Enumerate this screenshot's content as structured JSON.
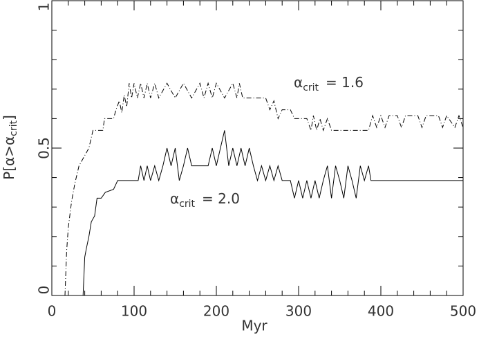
{
  "chart_data": {
    "type": "line",
    "xlabel": "Myr",
    "ylabel": {
      "main": "P[α>α",
      "sub": "crit",
      "end": "]"
    },
    "xlim": [
      0,
      500
    ],
    "ylim": [
      0,
      1
    ],
    "xticks": [
      0,
      100,
      200,
      300,
      400,
      500
    ],
    "yticks": [
      0,
      0.5,
      1
    ],
    "xminorticks": [
      20,
      40,
      60,
      80,
      120,
      140,
      160,
      180,
      220,
      240,
      260,
      280,
      320,
      340,
      360,
      380,
      420,
      440,
      460,
      480
    ],
    "yminorticks": [
      0.1,
      0.2,
      0.3,
      0.4,
      0.6,
      0.7,
      0.8,
      0.9
    ],
    "series": [
      {
        "name": {
          "symbol": "α",
          "sub": "crit",
          "text": "= 1.6"
        },
        "color": "#000000",
        "dash": "dashdot",
        "x": [
          16,
          18,
          20,
          24,
          28,
          33,
          45,
          50,
          62,
          64,
          75,
          78,
          82,
          85,
          88,
          91,
          94,
          97,
          100,
          104,
          108,
          112,
          116,
          120,
          125,
          130,
          140,
          150,
          160,
          170,
          180,
          185,
          190,
          195,
          200,
          210,
          220,
          225,
          228,
          232,
          260,
          265,
          270,
          275,
          280,
          290,
          295,
          310,
          315,
          318,
          322,
          326,
          330,
          335,
          340,
          385,
          390,
          395,
          400,
          405,
          410,
          420,
          425,
          430,
          445,
          450,
          455,
          470,
          475,
          480,
          490,
          495,
          500
        ],
        "values": [
          0,
          0.15,
          0.23,
          0.32,
          0.38,
          0.44,
          0.5,
          0.56,
          0.56,
          0.6,
          0.6,
          0.63,
          0.66,
          0.62,
          0.68,
          0.64,
          0.72,
          0.67,
          0.72,
          0.67,
          0.72,
          0.67,
          0.72,
          0.67,
          0.72,
          0.67,
          0.72,
          0.67,
          0.72,
          0.67,
          0.72,
          0.67,
          0.72,
          0.67,
          0.72,
          0.67,
          0.72,
          0.67,
          0.72,
          0.67,
          0.67,
          0.63,
          0.66,
          0.6,
          0.63,
          0.63,
          0.6,
          0.6,
          0.56,
          0.61,
          0.56,
          0.6,
          0.56,
          0.6,
          0.56,
          0.56,
          0.61,
          0.57,
          0.61,
          0.57,
          0.61,
          0.61,
          0.57,
          0.61,
          0.61,
          0.57,
          0.61,
          0.61,
          0.57,
          0.61,
          0.57,
          0.61,
          0.57
        ]
      },
      {
        "name": {
          "symbol": "α",
          "sub": "crit",
          "text": "= 2.0"
        },
        "color": "#000000",
        "dash": "solid",
        "x": [
          38,
          40,
          42,
          45,
          48,
          52,
          55,
          60,
          65,
          75,
          80,
          105,
          108,
          112,
          116,
          120,
          125,
          130,
          135,
          140,
          145,
          150,
          155,
          160,
          165,
          170,
          190,
          195,
          200,
          205,
          210,
          215,
          220,
          225,
          230,
          235,
          240,
          245,
          250,
          255,
          260,
          265,
          270,
          275,
          280,
          290,
          295,
          300,
          305,
          310,
          315,
          320,
          325,
          330,
          335,
          340,
          345,
          350,
          355,
          360,
          365,
          370,
          375,
          380,
          385,
          388,
          500
        ],
        "values": [
          0,
          0.13,
          0.16,
          0.2,
          0.25,
          0.27,
          0.33,
          0.33,
          0.35,
          0.36,
          0.39,
          0.39,
          0.44,
          0.39,
          0.44,
          0.39,
          0.44,
          0.39,
          0.44,
          0.5,
          0.44,
          0.5,
          0.39,
          0.44,
          0.5,
          0.44,
          0.44,
          0.5,
          0.44,
          0.5,
          0.56,
          0.44,
          0.5,
          0.44,
          0.5,
          0.44,
          0.5,
          0.44,
          0.39,
          0.44,
          0.39,
          0.44,
          0.39,
          0.44,
          0.39,
          0.39,
          0.33,
          0.39,
          0.33,
          0.39,
          0.33,
          0.39,
          0.33,
          0.39,
          0.44,
          0.33,
          0.44,
          0.39,
          0.33,
          0.44,
          0.39,
          0.33,
          0.44,
          0.39,
          0.44,
          0.39,
          0.39
        ]
      }
    ]
  }
}
